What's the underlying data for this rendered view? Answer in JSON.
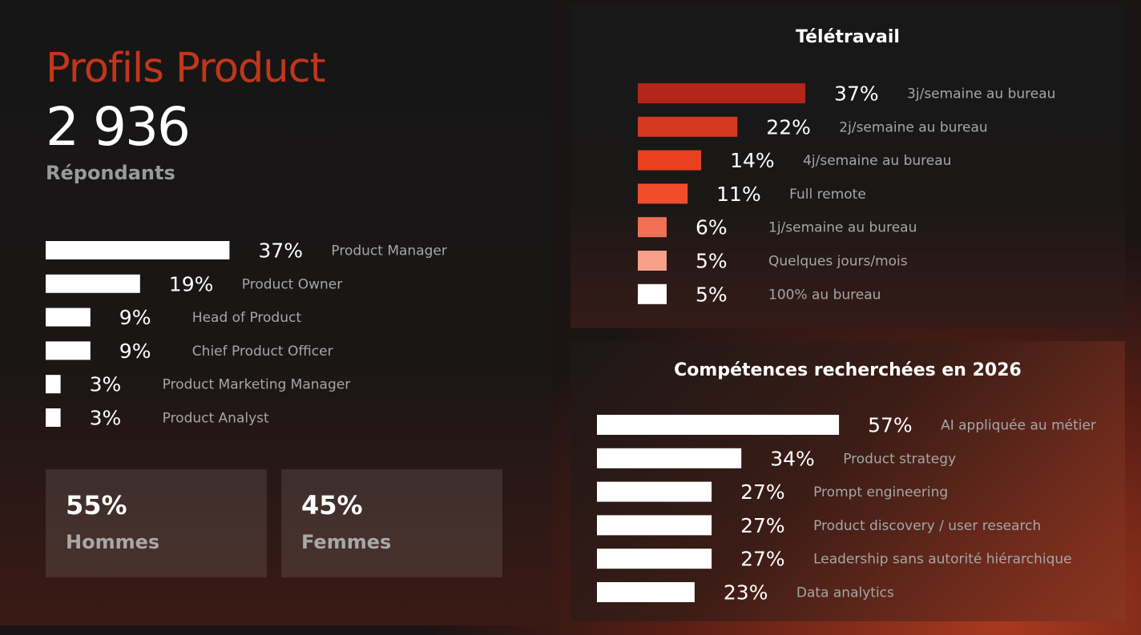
{
  "profiles": {
    "title": "Profils Product",
    "count": "2 936",
    "subtitle": "Répondants",
    "chart_data": {
      "type": "bar",
      "orientation": "horizontal",
      "categories": [
        "Product Manager",
        "Product Owner",
        "Head of Product",
        "Chief Product Officer",
        "Product Marketing Manager",
        "Product Analyst"
      ],
      "values": [
        37,
        19,
        9,
        9,
        3,
        3
      ],
      "labels": [
        "37%",
        "19%",
        "9%",
        "9%",
        "3%",
        "3%"
      ],
      "unit": "%",
      "colors": [
        "#ffffff",
        "#ffffff",
        "#ffffff",
        "#ffffff",
        "#ffffff",
        "#ffffff"
      ]
    }
  },
  "gender": {
    "men": {
      "value": "55%",
      "label": "Hommes"
    },
    "women": {
      "value": "45%",
      "label": "Femmes"
    }
  },
  "teletravail": {
    "title": "Télétravail",
    "chart_data": {
      "type": "bar",
      "orientation": "horizontal",
      "categories": [
        "3j/semaine au bureau",
        "2j/semaine au bureau",
        "4j/semaine au bureau",
        "Full remote",
        "1j/semaine au bureau",
        "Quelques jours/mois",
        "100% au bureau"
      ],
      "values": [
        37,
        22,
        14,
        11,
        6,
        5,
        5
      ],
      "labels": [
        "37%",
        "22%",
        "14%",
        "11%",
        "6%",
        "5%",
        "5%"
      ],
      "unit": "%",
      "colors": [
        "#b3271a",
        "#d33a1f",
        "#e9401f",
        "#f24d2b",
        "#f07055",
        "#f7a089",
        "#ffffff"
      ]
    }
  },
  "competences": {
    "title": "Compétences recherchées en 2026",
    "chart_data": {
      "type": "bar",
      "orientation": "horizontal",
      "categories": [
        "AI appliquée au métier",
        "Product strategy",
        "Prompt engineering",
        "Product discovery / user research",
        "Leadership sans autorité hiérarchique",
        "Data analytics"
      ],
      "values": [
        57,
        34,
        27,
        27,
        27,
        23
      ],
      "labels": [
        "57%",
        "34%",
        "27%",
        "27%",
        "27%",
        "23%"
      ],
      "unit": "%",
      "colors": [
        "#ffffff",
        "#ffffff",
        "#ffffff",
        "#ffffff",
        "#ffffff",
        "#ffffff"
      ]
    }
  }
}
